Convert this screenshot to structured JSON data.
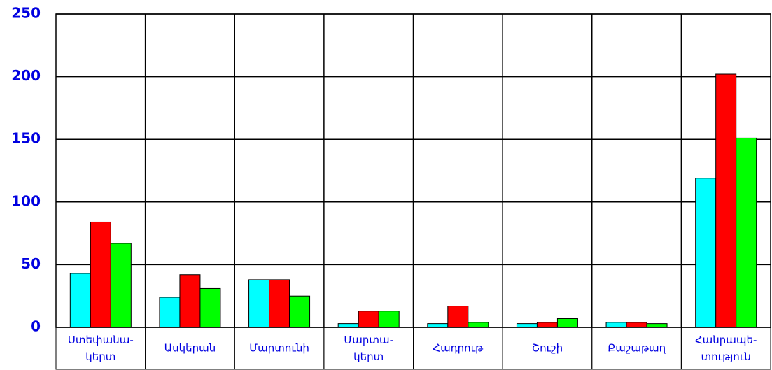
{
  "chart_data": {
    "type": "bar",
    "categories": [
      "Ստեփանա-կերտ",
      "Ասկերան",
      "Մարտունի",
      "Մարտա-կերտ",
      "Հադրութ",
      "Շուշի",
      "Քաշաթաղ",
      "Հանրապե-տություն"
    ],
    "series": [
      {
        "color": "#00ffff",
        "values": [
          43,
          24,
          38,
          3,
          3,
          3,
          4,
          119
        ]
      },
      {
        "color": "#ff0000",
        "values": [
          84,
          42,
          38,
          13,
          17,
          4,
          4,
          202
        ]
      },
      {
        "color": "#00ff00",
        "values": [
          67,
          31,
          25,
          13,
          4,
          7,
          3,
          151
        ]
      }
    ],
    "ylim": [
      0,
      250
    ],
    "yticks": [
      0,
      50,
      100,
      150,
      200,
      250
    ],
    "grid": true
  }
}
